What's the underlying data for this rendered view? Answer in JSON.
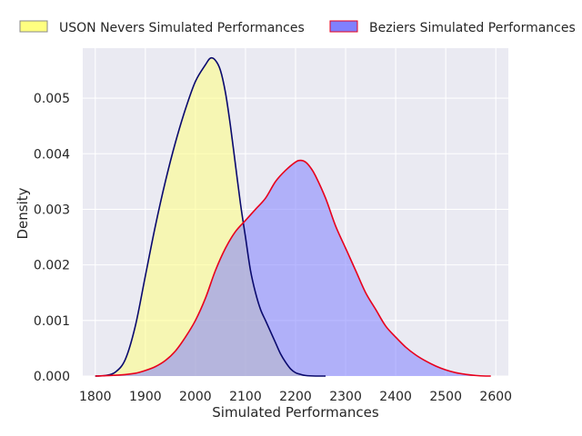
{
  "chart_data": {
    "type": "area",
    "xlabel": "Simulated Performances",
    "ylabel": "Density",
    "xlim": [
      1775,
      2625
    ],
    "ylim": [
      0,
      0.0059
    ],
    "xticks": [
      "1800",
      "1900",
      "2000",
      "2100",
      "2200",
      "2300",
      "2400",
      "2500",
      "2600"
    ],
    "yticks": [
      "0.000",
      "0.001",
      "0.002",
      "0.003",
      "0.004",
      "0.005"
    ],
    "grid": true,
    "legend_position": "top",
    "series": [
      {
        "name": "USON Nevers Simulated Performances",
        "fill_color": "#ffff80",
        "fill_opacity": 0.55,
        "line_color": "#0a0a6e",
        "legend_fill": "#ffff80",
        "legend_edge": "#888888",
        "x": [
          1800,
          1820,
          1840,
          1860,
          1880,
          1900,
          1920,
          1940,
          1960,
          1980,
          2000,
          2020,
          2030,
          2040,
          2050,
          2060,
          2070,
          2080,
          2090,
          2100,
          2110,
          2120,
          2130,
          2140,
          2150,
          2160,
          2170,
          2180,
          2190,
          2200,
          2210,
          2220,
          2240,
          2260
        ],
        "y": [
          0,
          1e-05,
          7e-05,
          0.0003,
          0.0009,
          0.0018,
          0.0027,
          0.0035,
          0.0042,
          0.0048,
          0.0053,
          0.0056,
          0.00572,
          0.00568,
          0.0055,
          0.0051,
          0.0045,
          0.0038,
          0.0031,
          0.0025,
          0.0019,
          0.0015,
          0.0012,
          0.001,
          0.0008,
          0.0006,
          0.0004,
          0.00025,
          0.00013,
          6e-05,
          3e-05,
          1e-05,
          0,
          0
        ]
      },
      {
        "name": "Beziers Simulated Performances",
        "fill_color": "#8080ff",
        "fill_opacity": 0.55,
        "line_color": "#e8001c",
        "legend_fill": "#8080ff",
        "legend_edge": "#e8001c",
        "x": [
          1800,
          1850,
          1880,
          1900,
          1920,
          1940,
          1960,
          1980,
          2000,
          2020,
          2040,
          2060,
          2080,
          2100,
          2120,
          2140,
          2160,
          2180,
          2200,
          2210,
          2220,
          2230,
          2240,
          2260,
          2280,
          2300,
          2320,
          2340,
          2360,
          2380,
          2400,
          2420,
          2440,
          2460,
          2480,
          2500,
          2520,
          2540,
          2560,
          2580,
          2590
        ],
        "y": [
          0,
          2e-05,
          5e-05,
          0.0001,
          0.00017,
          0.00028,
          0.00045,
          0.0007,
          0.001,
          0.0014,
          0.0019,
          0.0023,
          0.0026,
          0.0028,
          0.003,
          0.0032,
          0.0035,
          0.0037,
          0.00385,
          0.00388,
          0.00385,
          0.00375,
          0.0036,
          0.0032,
          0.0027,
          0.0023,
          0.0019,
          0.0015,
          0.0012,
          0.0009,
          0.0007,
          0.00052,
          0.00038,
          0.00027,
          0.00018,
          0.00011,
          6e-05,
          3e-05,
          1e-05,
          0,
          0
        ]
      }
    ]
  }
}
